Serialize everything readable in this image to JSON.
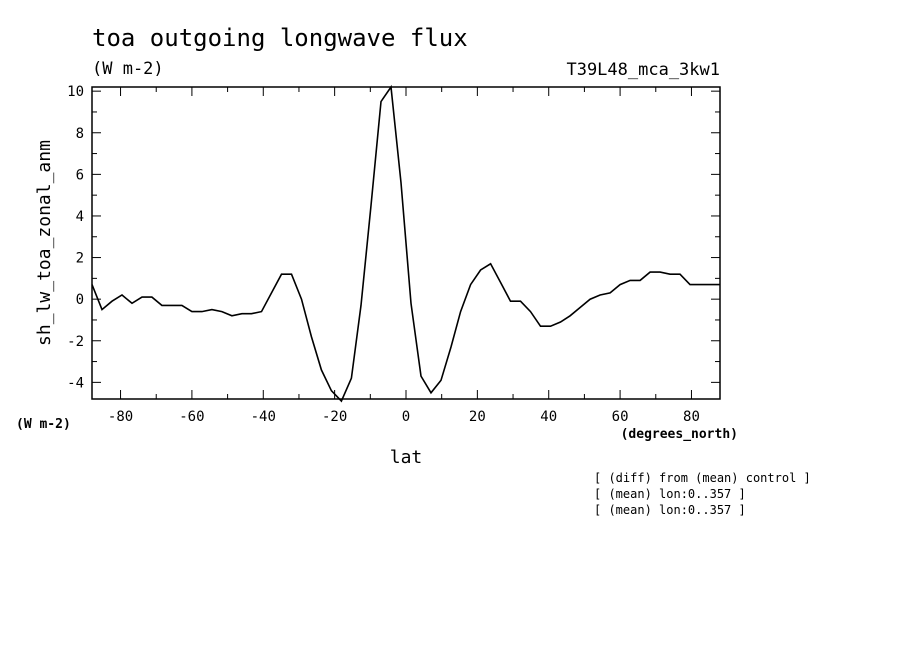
{
  "header": {
    "title": "toa outgoing longwave flux",
    "units": "(W m-2)",
    "experiment": "T39L48_mca_3kw1"
  },
  "footer_notes": [
    "[ (diff) from (mean) control ]",
    "[ (mean) lon:0..357 ]",
    "[ (mean) lon:0..357 ]"
  ],
  "chart_data": {
    "type": "line",
    "xlabel": "lat",
    "xunits": "(degrees_north)",
    "ylabel": "sh_lw_toa_zonal_anm",
    "yunits": "(W m-2)",
    "xlim": [
      -88,
      88
    ],
    "ylim": [
      -4.8,
      10.2
    ],
    "xticks": [
      -80,
      -60,
      -40,
      -20,
      0,
      20,
      40,
      60,
      80
    ],
    "xtick_labels": [
      "-80",
      "-60",
      "-40",
      "-20",
      "0",
      "20",
      "40",
      "60",
      "80"
    ],
    "yticks": [
      -4,
      -2,
      0,
      2,
      4,
      6,
      8,
      10
    ],
    "ytick_labels": [
      "-4",
      "-2",
      "0",
      "2",
      "4",
      "6",
      "8",
      "10"
    ],
    "grid": false,
    "series": [
      {
        "color": "#000000",
        "x": [
          -88,
          -85.2,
          -82.4,
          -79.6,
          -76.8,
          -74.0,
          -71.2,
          -68.4,
          -65.6,
          -62.8,
          -60.0,
          -57.2,
          -54.4,
          -51.6,
          -48.8,
          -46.0,
          -43.3,
          -40.5,
          -37.7,
          -34.9,
          -32.1,
          -29.3,
          -26.5,
          -23.7,
          -20.9,
          -18.1,
          -15.3,
          -12.6,
          -9.8,
          -7.0,
          -4.2,
          -1.4,
          1.4,
          4.2,
          7.0,
          9.8,
          12.6,
          15.3,
          18.1,
          20.9,
          23.7,
          26.5,
          29.3,
          32.1,
          34.9,
          37.7,
          40.5,
          43.3,
          46.0,
          48.8,
          51.6,
          54.4,
          57.2,
          60.0,
          62.8,
          65.6,
          68.4,
          71.2,
          74.0,
          76.8,
          79.6,
          82.4,
          85.2,
          88
        ],
        "y": [
          0.7,
          -0.5,
          -0.1,
          0.2,
          -0.2,
          0.1,
          0.1,
          -0.3,
          -0.3,
          -0.3,
          -0.6,
          -0.6,
          -0.5,
          -0.6,
          -0.8,
          -0.7,
          -0.7,
          -0.6,
          0.3,
          1.2,
          1.2,
          0.0,
          -1.8,
          -3.4,
          -4.4,
          -4.9,
          -3.8,
          -0.3,
          4.5,
          9.5,
          10.2,
          5.6,
          -0.2,
          -3.7,
          -4.5,
          -3.9,
          -2.3,
          -0.6,
          0.7,
          1.4,
          1.7,
          0.8,
          -0.1,
          -0.1,
          -0.6,
          -1.3,
          -1.3,
          -1.1,
          -0.8,
          -0.4,
          0.0,
          0.2,
          0.3,
          0.7,
          0.9,
          0.9,
          1.3,
          1.3,
          1.2,
          1.2,
          0.7,
          0.7,
          0.7,
          0.7
        ]
      }
    ]
  }
}
